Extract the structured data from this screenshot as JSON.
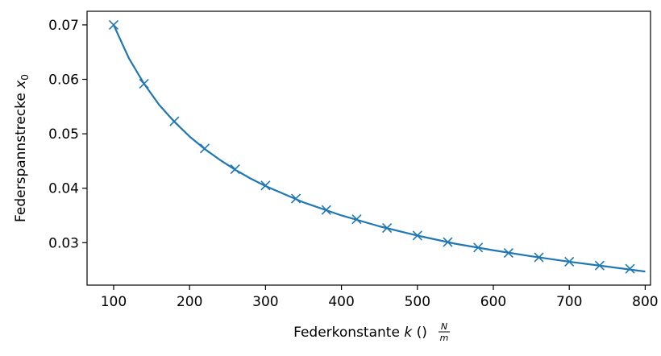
{
  "chart_data": {
    "type": "scatter",
    "xlabel": {
      "prefix": "Federkonstante ",
      "symbol": "k",
      "unit_open": " (",
      "unit_numerator": "N",
      "unit_denominator": "m",
      "unit_close": ")"
    },
    "ylabel": {
      "prefix": "Federspannstrecke ",
      "symbol": "x",
      "subscript": "0"
    },
    "xlim": [
      65,
      807
    ],
    "ylim": [
      0.0222,
      0.0725
    ],
    "xticks": [
      100,
      200,
      300,
      400,
      500,
      600,
      700,
      800
    ],
    "yticks": [
      0.03,
      0.04,
      0.05,
      0.06,
      0.07
    ],
    "ytick_labels": [
      "0.03",
      "0.04",
      "0.05",
      "0.06",
      "0.07"
    ],
    "grid": false,
    "color": "#1f77b4",
    "series": [
      {
        "style": "markers-x",
        "x": [
          100,
          140,
          180,
          220,
          260,
          300,
          340,
          380,
          420,
          460,
          500,
          540,
          580,
          620,
          660,
          700,
          740,
          780
        ],
        "y": [
          0.07,
          0.0592,
          0.0523,
          0.0473,
          0.0435,
          0.0405,
          0.0381,
          0.036,
          0.0343,
          0.0327,
          0.0313,
          0.0301,
          0.0291,
          0.0281,
          0.0273,
          0.0265,
          0.0258,
          0.0252
        ]
      },
      {
        "style": "line",
        "x": [
          100,
          120,
          140,
          160,
          180,
          200,
          220,
          240,
          260,
          280,
          300,
          350,
          400,
          450,
          500,
          550,
          600,
          650,
          700,
          750,
          800
        ],
        "y": [
          0.07,
          0.0639,
          0.0592,
          0.0553,
          0.0522,
          0.0495,
          0.0472,
          0.0452,
          0.0434,
          0.0418,
          0.0404,
          0.0374,
          0.035,
          0.033,
          0.0313,
          0.0298,
          0.0286,
          0.0275,
          0.0265,
          0.0256,
          0.0247
        ]
      }
    ]
  }
}
